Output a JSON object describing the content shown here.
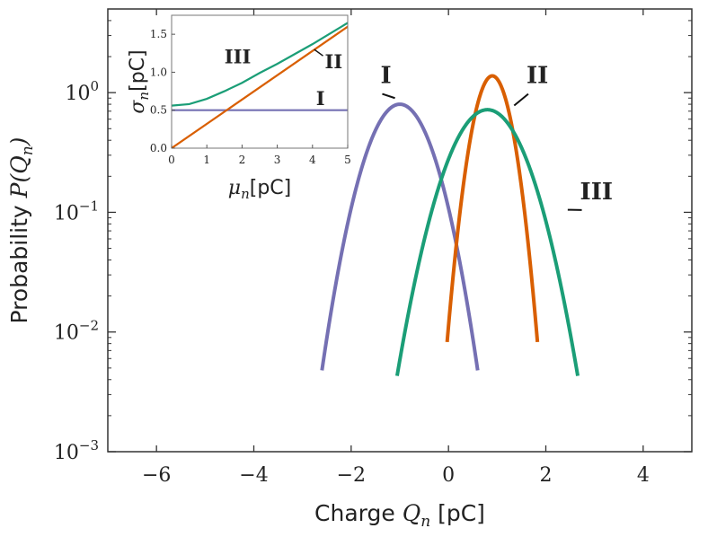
{
  "chart_data": [
    {
      "type": "line",
      "title": "",
      "xlabel": {
        "prefix": "Charge ",
        "symbol": "Q",
        "subscript": "n",
        "suffix": " [pC]"
      },
      "ylabel": {
        "prefix": "Probability ",
        "symbol": "P",
        "open": "(",
        "inner_symbol": "Q",
        "inner_subscript": "n",
        "close": ")"
      },
      "x_range": [
        -7,
        5
      ],
      "y_range": [
        0.001,
        5
      ],
      "y_scale": "log",
      "x_ticks": [
        {
          "value": -6,
          "label": "−6"
        },
        {
          "value": -4,
          "label": "−4"
        },
        {
          "value": -2,
          "label": "−2"
        },
        {
          "value": 0,
          "label": "0"
        },
        {
          "value": 2,
          "label": "2"
        },
        {
          "value": 4,
          "label": "4"
        }
      ],
      "y_ticks": [
        {
          "value": 0.001,
          "base": "10",
          "exp": "−3"
        },
        {
          "value": 0.01,
          "base": "10",
          "exp": "−2"
        },
        {
          "value": 0.1,
          "base": "10",
          "exp": "−1"
        },
        {
          "value": 1,
          "base": "10",
          "exp": "0"
        }
      ],
      "grid": false,
      "series": [
        {
          "name": "I",
          "color": "#7570b3",
          "mu": -1.0,
          "sigma": 0.5,
          "peak": 0.8,
          "label_anchor": [
            -1.1,
            0.9
          ],
          "label_pos": [
            -1.25,
            1.12
          ]
        },
        {
          "name": "II",
          "color": "#d95f02",
          "mu": 0.9,
          "sigma": 0.29,
          "peak": 1.38,
          "label_anchor": [
            1.35,
            0.78
          ],
          "label_pos": [
            1.75,
            1.12
          ]
        },
        {
          "name": "III",
          "color": "#1b9e77",
          "mu": 0.8,
          "sigma": 0.58,
          "peak": 0.72,
          "label_anchor": [
            2.45,
            0.105
          ],
          "label_pos": [
            2.85,
            0.12
          ]
        }
      ]
    },
    {
      "type": "line",
      "title": "",
      "xlabel": {
        "symbol": "μ",
        "subscript": "n",
        "suffix": "[pC]"
      },
      "ylabel": {
        "symbol": "σ",
        "subscript": "n",
        "suffix": "[pC]"
      },
      "x_range": [
        0,
        5
      ],
      "y_range": [
        0,
        1.75
      ],
      "x_ticks": [
        0,
        1,
        2,
        3,
        4,
        5
      ],
      "y_ticks": [
        {
          "value": 0,
          "label": "0.0"
        },
        {
          "value": 0.5,
          "label": "0.5"
        },
        {
          "value": 1.0,
          "label": "1.0"
        },
        {
          "value": 1.5,
          "label": "1.5"
        }
      ],
      "grid": false,
      "series": [
        {
          "name": "I",
          "color": "#7570b3",
          "x": [
            0,
            5
          ],
          "y": [
            0.5,
            0.5
          ],
          "label_pos": [
            4.1,
            0.57
          ]
        },
        {
          "name": "II",
          "color": "#d95f02",
          "x": [
            0,
            5
          ],
          "y": [
            0.0,
            1.6
          ],
          "label_pos": [
            4.35,
            1.05
          ],
          "label_anchor": [
            4.05,
            1.3
          ]
        },
        {
          "name": "III",
          "color": "#1b9e77",
          "x": [
            0,
            0.5,
            1,
            1.5,
            2,
            2.5,
            3,
            3.5,
            4,
            4.5,
            5
          ],
          "y": [
            0.56,
            0.58,
            0.65,
            0.75,
            0.86,
            0.99,
            1.11,
            1.24,
            1.37,
            1.51,
            1.65
          ],
          "label_pos": [
            1.5,
            1.12
          ]
        }
      ]
    }
  ]
}
